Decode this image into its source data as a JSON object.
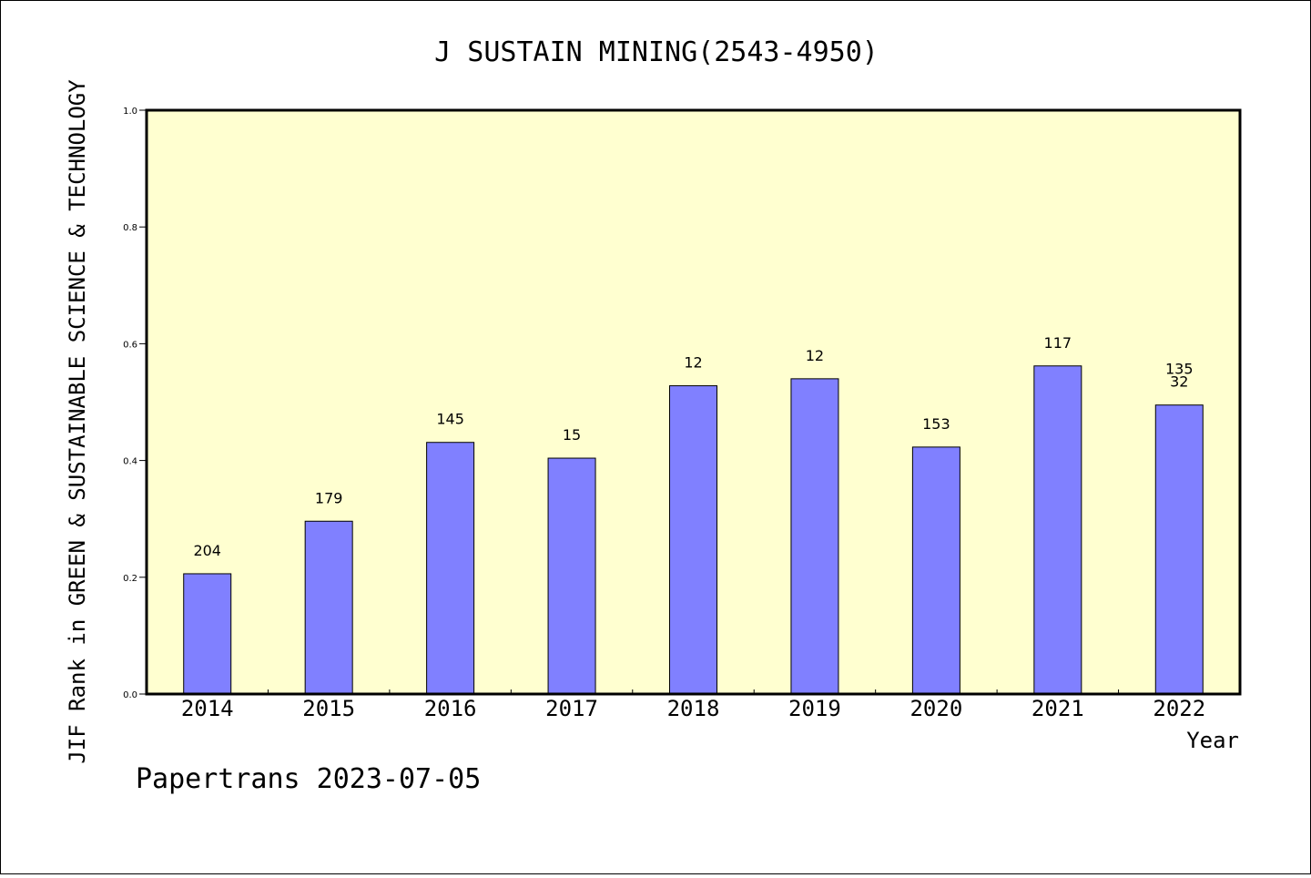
{
  "chart_data": {
    "type": "bar",
    "title": "J SUSTAIN MINING(2543-4950)",
    "xlabel": "Year",
    "ylabel": "JIF Rank in GREEN & SUSTAINABLE SCIENCE & TECHNOLOGY",
    "categories": [
      "2014",
      "2015",
      "2016",
      "2017",
      "2018",
      "2019",
      "2020",
      "2021",
      "2022"
    ],
    "values": [
      0.206,
      0.296,
      0.431,
      0.404,
      0.528,
      0.54,
      0.423,
      0.562,
      0.495
    ],
    "data_labels": [
      [
        "204"
      ],
      [
        "179"
      ],
      [
        "145"
      ],
      [
        "15"
      ],
      [
        "12"
      ],
      [
        "12"
      ],
      [
        "153"
      ],
      [
        "117"
      ],
      [
        "135",
        "32"
      ]
    ],
    "ylim": [
      0.0,
      1.0
    ],
    "yticks": [
      "0.0",
      "0.2",
      "0.4",
      "0.6",
      "0.8",
      "1.0"
    ],
    "grid": false,
    "colors": {
      "bar": "#8080ff",
      "plot_background": "#ffffd0"
    }
  },
  "footer": "Papertrans 2023-07-05"
}
